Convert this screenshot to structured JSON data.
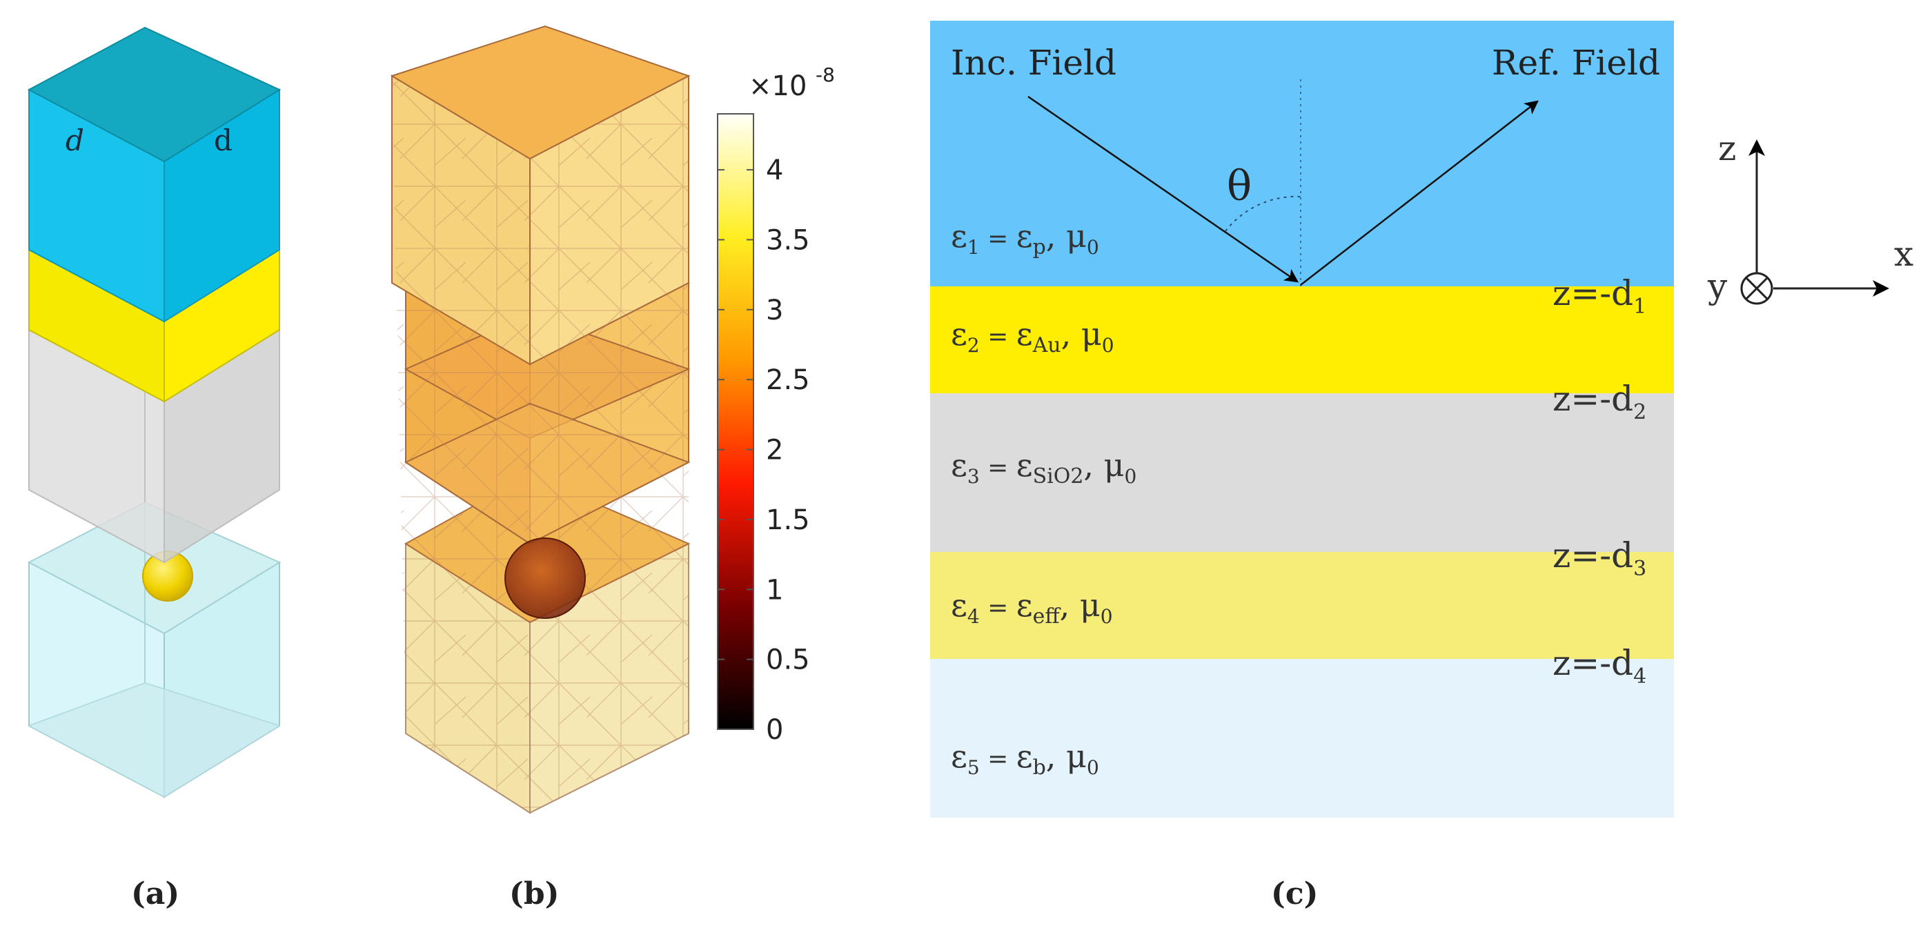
{
  "panel_a": {
    "caption": "(a)",
    "label_d_left": "d",
    "label_d_right": "d"
  },
  "panel_b": {
    "caption": "(b)",
    "colorbar": {
      "multiplier": "×10",
      "exponent": "-8",
      "ticks": [
        "0",
        "0.5",
        "1",
        "1.5",
        "2",
        "2.5",
        "3",
        "3.5",
        "4"
      ],
      "range": [
        0,
        4.4
      ]
    }
  },
  "panel_c": {
    "caption": "(c)",
    "inc_field": "Inc. Field",
    "ref_field": "Ref. Field",
    "theta": "θ",
    "layers": [
      {
        "lhs": "ε",
        "lhs_sub": "1",
        "eq": " = ",
        "rhs": "ε",
        "rhs_sub": "p",
        "mu": ", μ",
        "mu_sub": "0",
        "color": "#66c6fb"
      },
      {
        "lhs": "ε",
        "lhs_sub": "2",
        "eq": " = ",
        "rhs": "ε",
        "rhs_sub": "Au",
        "mu": ", μ",
        "mu_sub": "0",
        "color": "#ffee00"
      },
      {
        "lhs": "ε",
        "lhs_sub": "3",
        "eq": " = ",
        "rhs": "ε",
        "rhs_sub": "SiO2",
        "mu": ", μ",
        "mu_sub": "0",
        "color": "#dcdcdc"
      },
      {
        "lhs": "ε",
        "lhs_sub": "4",
        "eq": " = ",
        "rhs": "ε",
        "rhs_sub": "eff",
        "mu": ", μ",
        "mu_sub": "0",
        "color": "#f5ed78"
      },
      {
        "lhs": "ε",
        "lhs_sub": "5",
        "eq": " = ",
        "rhs": "ε",
        "rhs_sub": "b",
        "mu": ", μ",
        "mu_sub": "0",
        "color": "#e5f4fc"
      }
    ],
    "interfaces": [
      {
        "text": "z=-d",
        "sub": "1"
      },
      {
        "text": "z=-d",
        "sub": "2"
      },
      {
        "text": "z=-d",
        "sub": "3"
      },
      {
        "text": "z=-d",
        "sub": "4"
      }
    ],
    "axes": {
      "z": "z",
      "x": "x",
      "y": "y"
    }
  }
}
